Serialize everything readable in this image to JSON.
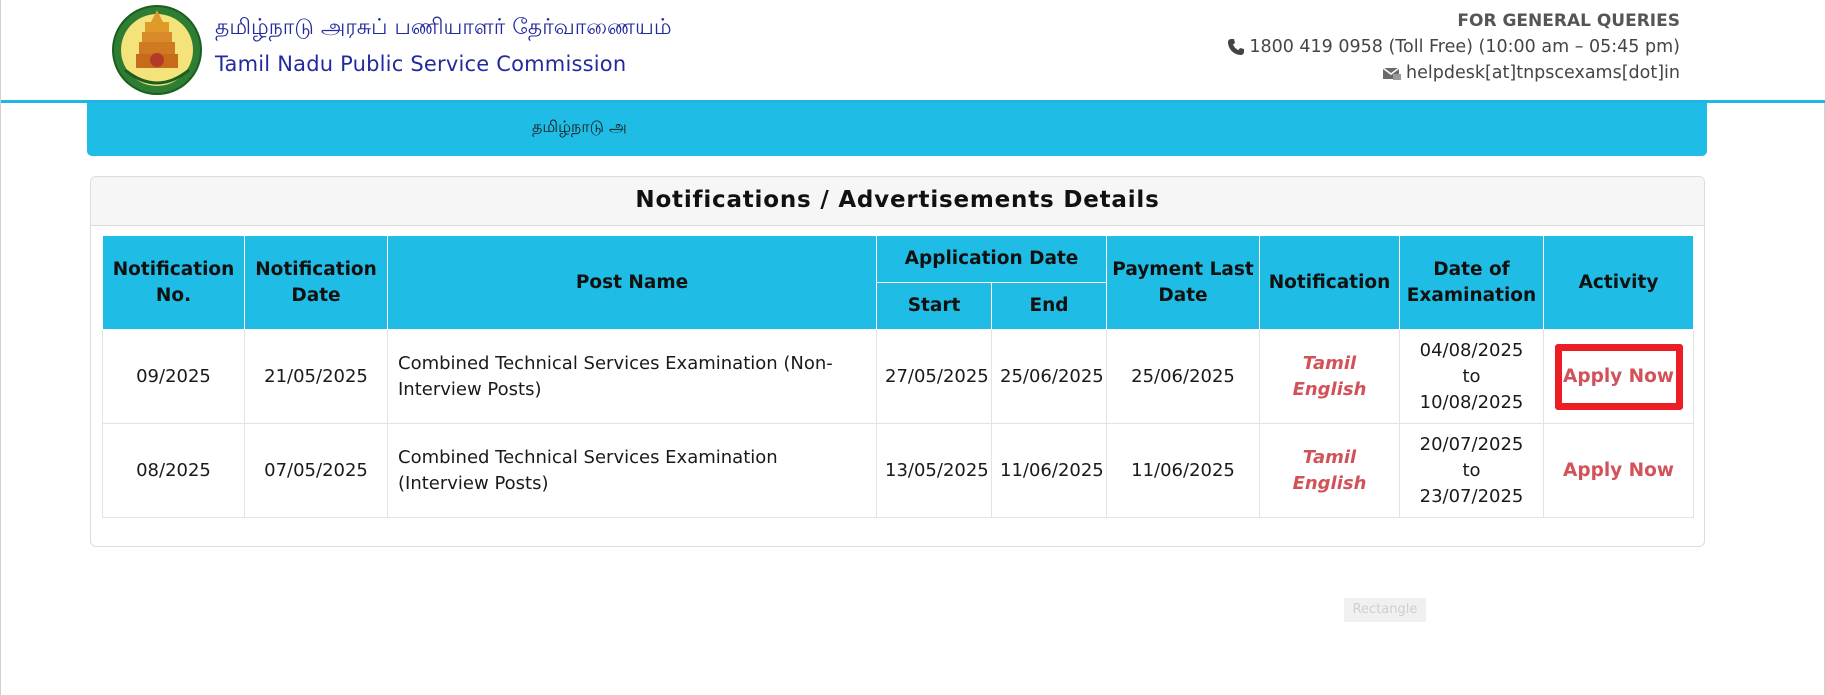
{
  "header": {
    "title_tamil": "தமிழ்நாடு அரசுப் பணியாளர் தேர்வாணையம்",
    "title_english": "Tamil Nadu Public Service Commission",
    "emblem_icon": "tamil-nadu-emblem-icon",
    "queries_title": "FOR GENERAL QUERIES",
    "phone": "1800 419 0958 (Toll Free) (10:00 am – 05:45 pm)",
    "email": "helpdesk[at]tnpscexams[dot]in"
  },
  "menu": {
    "item": "தமிழ்நாடு அ"
  },
  "panel": {
    "heading": "Notifications / Advertisements Details"
  },
  "table": {
    "headers": {
      "notification_no": "Notification No.",
      "notification_date": "Notification Date",
      "post_name": "Post Name",
      "application_date": "Application Date",
      "start": "Start",
      "end": "End",
      "payment_last_date": "Payment Last Date",
      "notification": "Notification",
      "date_of_examination": "Date of Examination",
      "activity": "Activity"
    },
    "rows": [
      {
        "notification_no": "09/2025",
        "notification_date": "21/05/2025",
        "post_name": "Combined Technical Services Examination (Non-Interview Posts)",
        "start": "27/05/2025",
        "end": "25/06/2025",
        "payment_last_date": "25/06/2025",
        "tamil_link": "Tamil",
        "english_link": "English",
        "exam_dates": "04/08/2025 to 10/08/2025",
        "activity": "Apply Now"
      },
      {
        "notification_no": "08/2025",
        "notification_date": "07/05/2025",
        "post_name": "Combined Technical Services Examination (Interview Posts)",
        "start": "13/05/2025",
        "end": "11/06/2025",
        "payment_last_date": "11/06/2025",
        "tamil_link": "Tamil",
        "english_link": "English",
        "exam_dates": "20/07/2025 to 23/07/2025",
        "activity": "Apply Now"
      }
    ]
  },
  "stray_label": "Rectangle",
  "colors": {
    "accent": "#1fbde5",
    "brand_text": "#232a9c",
    "link": "#d2525a",
    "highlight": "#ee1c24"
  }
}
